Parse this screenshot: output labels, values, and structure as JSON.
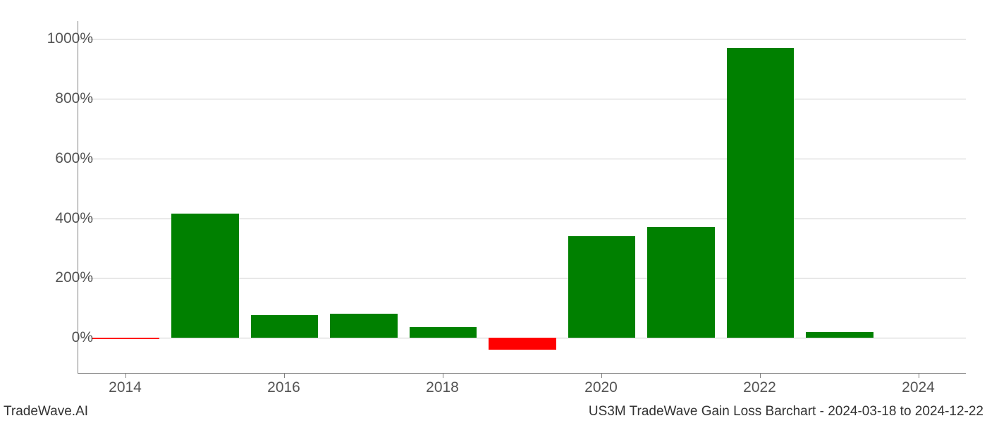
{
  "chart": {
    "type": "bar",
    "background_color": "#ffffff",
    "grid_color": "#cccccc",
    "axis_color": "#808080",
    "tick_label_color": "#555555",
    "tick_fontsize": 21,
    "footer_fontsize": 19,
    "footer_color": "#333333",
    "positive_color": "#008000",
    "negative_color": "#ff0000",
    "bar_width": 0.85,
    "years": [
      2014,
      2015,
      2016,
      2017,
      2018,
      2019,
      2020,
      2021,
      2022,
      2023,
      2024
    ],
    "values": [
      -5,
      415,
      75,
      80,
      35,
      -40,
      340,
      370,
      970,
      20,
      0
    ],
    "ylim": [
      -120,
      1060
    ],
    "xlim": [
      2013.4,
      2024.6
    ],
    "y_ticks": [
      0,
      200,
      400,
      600,
      800,
      1000
    ],
    "y_tick_labels": [
      "0%",
      "200%",
      "400%",
      "600%",
      "800%",
      "1000%"
    ],
    "x_ticks": [
      2014,
      2016,
      2018,
      2020,
      2022,
      2024
    ],
    "x_tick_labels": [
      "2014",
      "2016",
      "2018",
      "2020",
      "2022",
      "2024"
    ]
  },
  "labels": {
    "bottom_left": "TradeWave.AI",
    "bottom_right": "US3M TradeWave Gain Loss Barchart - 2024-03-18 to 2024-12-22"
  }
}
